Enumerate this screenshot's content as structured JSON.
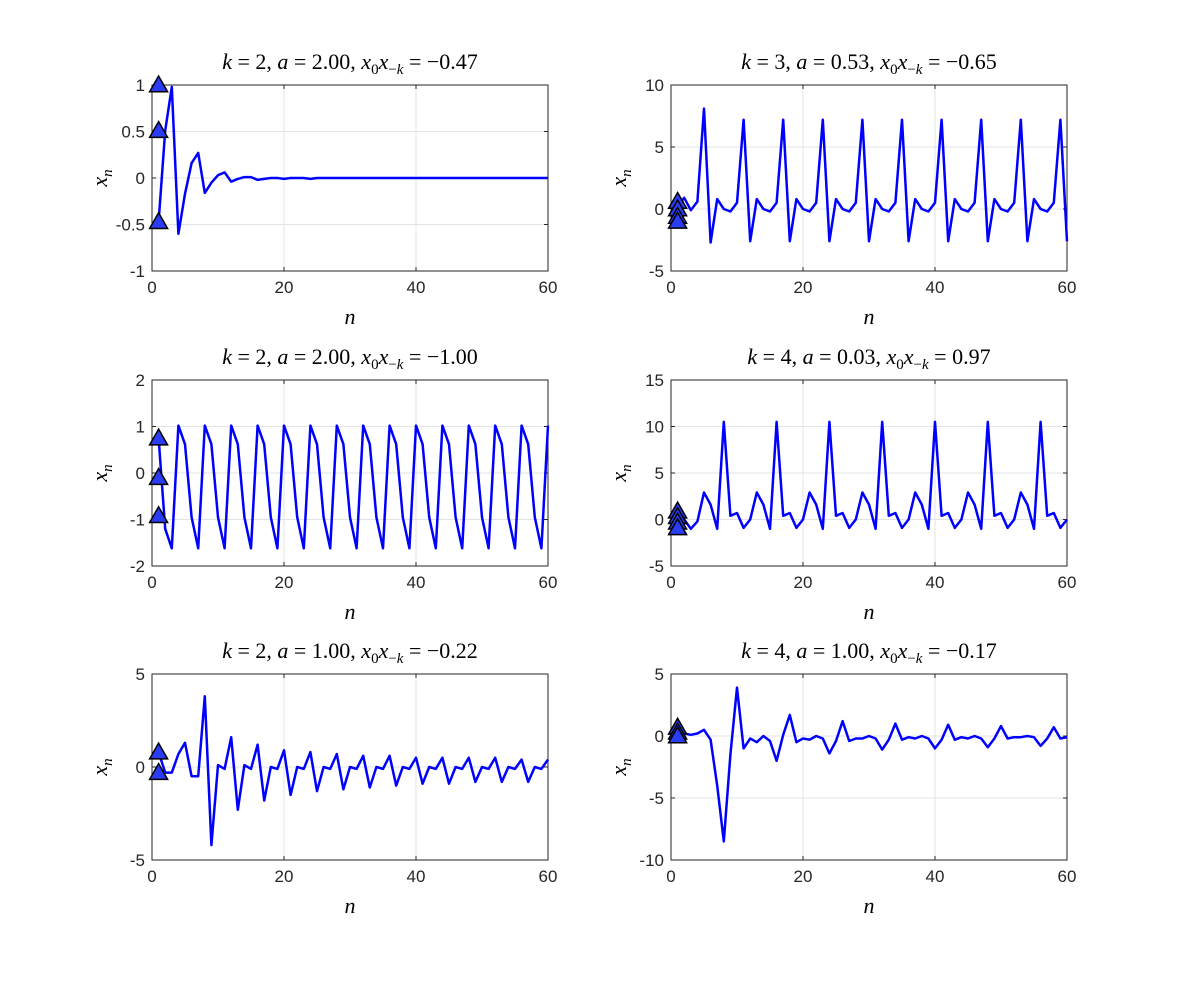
{
  "figure": {
    "background": "#ffffff",
    "line_color": "#0000ff",
    "marker_color": "#2a3df5"
  },
  "chart_data": [
    {
      "type": "line",
      "title": "k = 2, a = 2.00, x0x−k = −0.47",
      "title_parts": {
        "k": "2",
        "a": "2.00",
        "p": "−0.47"
      },
      "xlabel": "n",
      "ylabel": "x_n",
      "xlim": [
        0,
        60
      ],
      "ylim": [
        -1,
        1
      ],
      "xticks": [
        0,
        20,
        40,
        60
      ],
      "yticks": [
        -1,
        -0.5,
        0,
        0.5,
        1
      ],
      "ytick_labels": [
        "-1",
        "-0.5",
        "0",
        "0.5",
        "1"
      ],
      "grid": true,
      "x": [
        1,
        2,
        3,
        4,
        5,
        6,
        7,
        8,
        9,
        10,
        11,
        12,
        13,
        14,
        15,
        16,
        17,
        18,
        19,
        20,
        21,
        22,
        23,
        24,
        25,
        26,
        27,
        28,
        29,
        30,
        31,
        32,
        33,
        34,
        35,
        36,
        37,
        38,
        39,
        40,
        41,
        42,
        43,
        44,
        45,
        46,
        47,
        48,
        49,
        50,
        51,
        52,
        53,
        54,
        55,
        56,
        57,
        58,
        59,
        60
      ],
      "y": [
        -0.47,
        0.51,
        0.98,
        -0.6,
        -0.17,
        0.16,
        0.27,
        -0.16,
        -0.05,
        0.03,
        0.06,
        -0.04,
        -0.01,
        0.01,
        0.01,
        -0.02,
        -0.01,
        0,
        0,
        -0.01,
        0,
        0,
        0,
        -0.01,
        0,
        0,
        0,
        0,
        0,
        0,
        0,
        0,
        0,
        0,
        0,
        0,
        0,
        0,
        0,
        0,
        0,
        0,
        0,
        0,
        0,
        0,
        0,
        0,
        0,
        0,
        0,
        0,
        0,
        0,
        0,
        0,
        0,
        0,
        0,
        0
      ],
      "markers": {
        "x": 1,
        "y": [
          1.0,
          0.51,
          -0.47
        ]
      }
    },
    {
      "type": "line",
      "title": "k = 3, a = 0.53, x0x−k = −0.65",
      "title_parts": {
        "k": "3",
        "a": "0.53",
        "p": "−0.65"
      },
      "xlabel": "n",
      "ylabel": "x_n",
      "xlim": [
        0,
        60
      ],
      "ylim": [
        -5,
        10
      ],
      "xticks": [
        0,
        20,
        40,
        60
      ],
      "yticks": [
        -5,
        0,
        5,
        10
      ],
      "ytick_labels": [
        "-5",
        "0",
        "5",
        "10"
      ],
      "grid": true,
      "x": [
        1,
        2,
        3,
        4,
        5,
        6,
        7,
        8,
        9,
        10,
        11,
        12,
        13,
        14,
        15,
        16,
        17,
        18,
        19,
        20,
        21,
        22,
        23,
        24,
        25,
        26,
        27,
        28,
        29,
        30,
        31,
        32,
        33,
        34,
        35,
        36,
        37,
        38,
        39,
        40,
        41,
        42,
        43,
        44,
        45,
        46,
        47,
        48,
        49,
        50,
        51,
        52,
        53,
        54,
        55,
        56,
        57,
        58,
        59,
        60
      ],
      "y": [
        0.2,
        0.9,
        -0.1,
        0.6,
        8.1,
        -2.7,
        0.8,
        0,
        -0.2,
        0.5,
        7.2,
        -2.6,
        0.8,
        0,
        -0.2,
        0.5,
        7.2,
        -2.6,
        0.8,
        0,
        -0.2,
        0.5,
        7.2,
        -2.6,
        0.8,
        0,
        -0.2,
        0.5,
        7.2,
        -2.6,
        0.8,
        0,
        -0.2,
        0.5,
        7.2,
        -2.6,
        0.8,
        0,
        -0.2,
        0.5,
        7.2,
        -2.6,
        0.8,
        0,
        -0.2,
        0.5,
        7.2,
        -2.6,
        0.8,
        0,
        -0.2,
        0.5,
        7.2,
        -2.6,
        0.8,
        0,
        -0.2,
        0.5,
        7.2,
        -2.6
      ],
      "markers": {
        "x": 1,
        "y": [
          0.6,
          0,
          -0.6,
          -1.0
        ]
      }
    },
    {
      "type": "line",
      "title": "k = 2, a = 2.00, x0x−k = −1.00",
      "title_parts": {
        "k": "2",
        "a": "2.00",
        "p": "−1.00"
      },
      "xlabel": "n",
      "ylabel": "x_n",
      "xlim": [
        0,
        60
      ],
      "ylim": [
        -2,
        2
      ],
      "xticks": [
        0,
        20,
        40,
        60
      ],
      "yticks": [
        -2,
        -1,
        0,
        1,
        2
      ],
      "ytick_labels": [
        "-2",
        "-1",
        "0",
        "1",
        "2"
      ],
      "grid": true,
      "x": [
        1,
        2,
        3,
        4,
        5,
        6,
        7,
        8,
        9,
        10,
        11,
        12,
        13,
        14,
        15,
        16,
        17,
        18,
        19,
        20,
        21,
        22,
        23,
        24,
        25,
        26,
        27,
        28,
        29,
        30,
        31,
        32,
        33,
        34,
        35,
        36,
        37,
        38,
        39,
        40,
        41,
        42,
        43,
        44,
        45,
        46,
        47,
        48,
        49,
        50,
        51,
        52,
        53,
        54,
        55,
        56,
        57,
        58,
        59,
        60
      ],
      "y": [
        0.75,
        -1.2,
        -1.62,
        1.02,
        0.62,
        -0.95,
        -1.62,
        1.02,
        0.62,
        -0.95,
        -1.62,
        1.02,
        0.62,
        -0.95,
        -1.62,
        1.02,
        0.62,
        -0.95,
        -1.62,
        1.02,
        0.62,
        -0.95,
        -1.62,
        1.02,
        0.62,
        -0.95,
        -1.62,
        1.02,
        0.62,
        -0.95,
        -1.62,
        1.02,
        0.62,
        -0.95,
        -1.62,
        1.02,
        0.62,
        -0.95,
        -1.62,
        1.02,
        0.62,
        -0.95,
        -1.62,
        1.02,
        0.62,
        -0.95,
        -1.62,
        1.02,
        0.62,
        -0.95,
        -1.62,
        1.02,
        0.62,
        -0.95,
        -1.62,
        1.02,
        0.62,
        -0.95,
        -1.62,
        1.02
      ],
      "markers": {
        "x": 1,
        "y": [
          0.75,
          -0.1,
          -0.92
        ]
      }
    },
    {
      "type": "line",
      "title": "k = 4, a = 0.03, x0x−k = 0.97",
      "title_parts": {
        "k": "4",
        "a": "0.03",
        "p": "0.97"
      },
      "xlabel": "n",
      "ylabel": "x_n",
      "xlim": [
        0,
        60
      ],
      "ylim": [
        -5,
        15
      ],
      "xticks": [
        0,
        20,
        40,
        60
      ],
      "yticks": [
        -5,
        0,
        5,
        10,
        15
      ],
      "ytick_labels": [
        "-5",
        "0",
        "5",
        "10",
        "15"
      ],
      "grid": true,
      "x": [
        1,
        2,
        3,
        4,
        5,
        6,
        7,
        8,
        9,
        10,
        11,
        12,
        13,
        14,
        15,
        16,
        17,
        18,
        19,
        20,
        21,
        22,
        23,
        24,
        25,
        26,
        27,
        28,
        29,
        30,
        31,
        32,
        33,
        34,
        35,
        36,
        37,
        38,
        39,
        40,
        41,
        42,
        43,
        44,
        45,
        46,
        47,
        48,
        49,
        50,
        51,
        52,
        53,
        54,
        55,
        56,
        57,
        58,
        59,
        60
      ],
      "y": [
        0.5,
        0,
        -1.0,
        -0.2,
        2.9,
        1.6,
        -1.0,
        10.5,
        0.4,
        0.7,
        -0.9,
        0,
        2.9,
        1.6,
        -1.0,
        10.5,
        0.4,
        0.7,
        -0.9,
        0,
        2.9,
        1.6,
        -1.0,
        10.5,
        0.4,
        0.7,
        -0.9,
        0,
        2.9,
        1.6,
        -1.0,
        10.5,
        0.4,
        0.7,
        -0.9,
        0,
        2.9,
        1.6,
        -1.0,
        10.5,
        0.4,
        0.7,
        -0.9,
        0,
        2.9,
        1.6,
        -1.0,
        10.5,
        0.4,
        0.7,
        -0.9,
        0,
        2.9,
        1.6,
        -1.0,
        10.5,
        0.4,
        0.7,
        -0.9,
        0
      ],
      "markers": {
        "x": 1,
        "y": [
          0.9,
          0.3,
          -0.3,
          -0.9
        ]
      }
    },
    {
      "type": "line",
      "title": "k = 2, a = 1.00, x0x−k = −0.22",
      "title_parts": {
        "k": "2",
        "a": "1.00",
        "p": "−0.22"
      },
      "xlabel": "n",
      "ylabel": "x_n",
      "xlim": [
        0,
        60
      ],
      "ylim": [
        -5,
        5
      ],
      "xticks": [
        0,
        20,
        40,
        60
      ],
      "yticks": [
        -5,
        0,
        5
      ],
      "ytick_labels": [
        "-5",
        "0",
        "5"
      ],
      "grid": true,
      "x": [
        1,
        2,
        3,
        4,
        5,
        6,
        7,
        8,
        9,
        10,
        11,
        12,
        13,
        14,
        15,
        16,
        17,
        18,
        19,
        20,
        21,
        22,
        23,
        24,
        25,
        26,
        27,
        28,
        29,
        30,
        31,
        32,
        33,
        34,
        35,
        36,
        37,
        38,
        39,
        40,
        41,
        42,
        43,
        44,
        45,
        46,
        47,
        48,
        49,
        50,
        51,
        52,
        53,
        54,
        55,
        56,
        57,
        58,
        59,
        60
      ],
      "y": [
        0.8,
        -0.3,
        -0.3,
        0.7,
        1.3,
        -0.5,
        -0.5,
        3.8,
        -4.2,
        0.1,
        -0.1,
        1.6,
        -2.3,
        0.1,
        -0.1,
        1.2,
        -1.8,
        0,
        -0.1,
        0.9,
        -1.5,
        0,
        -0.1,
        0.8,
        -1.3,
        0,
        -0.1,
        0.7,
        -1.2,
        0,
        -0.1,
        0.6,
        -1.1,
        0,
        -0.1,
        0.6,
        -1.0,
        0,
        -0.1,
        0.5,
        -0.9,
        0,
        -0.1,
        0.5,
        -0.9,
        0,
        -0.1,
        0.5,
        -0.8,
        0,
        -0.1,
        0.5,
        -0.8,
        0,
        -0.1,
        0.4,
        -0.8,
        0,
        -0.1,
        0.4
      ],
      "markers": {
        "x": 1,
        "y": [
          0.8,
          -0.3
        ]
      }
    },
    {
      "type": "line",
      "title": "k = 4, a = 1.00, x0x−k = −0.17",
      "title_parts": {
        "k": "4",
        "a": "1.00",
        "p": "−0.17"
      },
      "xlabel": "n",
      "ylabel": "x_n",
      "xlim": [
        0,
        60
      ],
      "ylim": [
        -10,
        5
      ],
      "xticks": [
        0,
        20,
        40,
        60
      ],
      "yticks": [
        -10,
        -5,
        0,
        5
      ],
      "ytick_labels": [
        "-10",
        "-5",
        "0",
        "5"
      ],
      "grid": true,
      "x": [
        1,
        2,
        3,
        4,
        5,
        6,
        7,
        8,
        9,
        10,
        11,
        12,
        13,
        14,
        15,
        16,
        17,
        18,
        19,
        20,
        21,
        22,
        23,
        24,
        25,
        26,
        27,
        28,
        29,
        30,
        31,
        32,
        33,
        34,
        35,
        36,
        37,
        38,
        39,
        40,
        41,
        42,
        43,
        44,
        45,
        46,
        47,
        48,
        49,
        50,
        51,
        52,
        53,
        54,
        55,
        56,
        57,
        58,
        59,
        60
      ],
      "y": [
        0.6,
        0.2,
        0.1,
        0.2,
        0.5,
        -0.3,
        -4.0,
        -8.5,
        -1.5,
        3.9,
        -1.0,
        -0.2,
        -0.5,
        0,
        -0.4,
        -2.0,
        0.1,
        1.7,
        -0.5,
        -0.2,
        -0.3,
        0,
        -0.2,
        -1.4,
        -0.4,
        1.2,
        -0.4,
        -0.2,
        -0.2,
        0,
        -0.2,
        -1.1,
        -0.3,
        1.0,
        -0.3,
        -0.1,
        -0.2,
        0,
        -0.2,
        -1.0,
        -0.3,
        0.9,
        -0.3,
        -0.1,
        -0.2,
        0,
        -0.2,
        -0.9,
        -0.2,
        0.8,
        -0.2,
        -0.1,
        -0.1,
        0,
        -0.1,
        -0.8,
        -0.2,
        0.7,
        -0.2,
        -0.1
      ],
      "markers": {
        "x": 1,
        "y": [
          0.7,
          0.3,
          0.0
        ]
      }
    }
  ]
}
